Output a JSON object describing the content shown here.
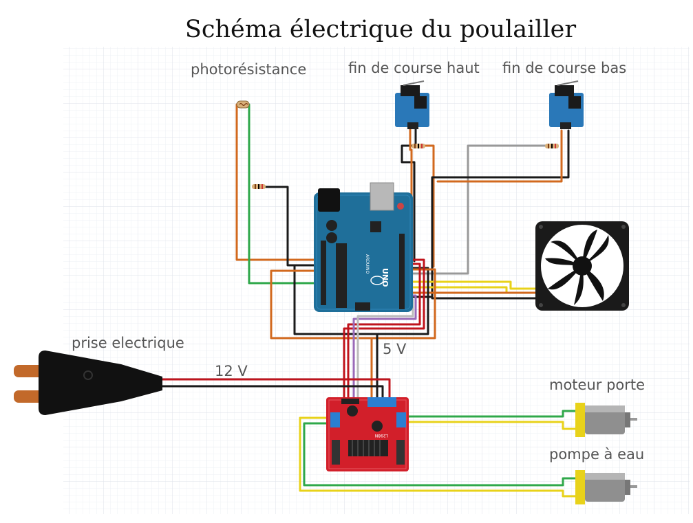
{
  "title": "Schéma électrique du poulailler",
  "labels": {
    "photoresistance": "photorésistance",
    "fin_course_haut": "fin de course haut",
    "fin_course_bas": "fin de course bas",
    "prise": "prise electrique",
    "v12": "12 V",
    "v5": "5 V",
    "moteur_porte": "moteur porte",
    "pompe": "pompe à eau"
  },
  "board_text": {
    "uno": "UNO",
    "arduino": "ARDUINO",
    "driver_chip": "L298N"
  },
  "colors": {
    "grid": "#e8ecf3",
    "arduino_blue": "#1f6f9a",
    "driver_red": "#d21f2a",
    "switch_blue": "#2a78b8",
    "wire_orange": "#d2691e",
    "wire_black": "#1a1a1a",
    "wire_green": "#2fa84a",
    "wire_gray": "#999999",
    "wire_yellow": "#e8d21a",
    "wire_red": "#c0141c",
    "wire_purple": "#9a6ab8",
    "plug_copper": "#c2692a"
  }
}
